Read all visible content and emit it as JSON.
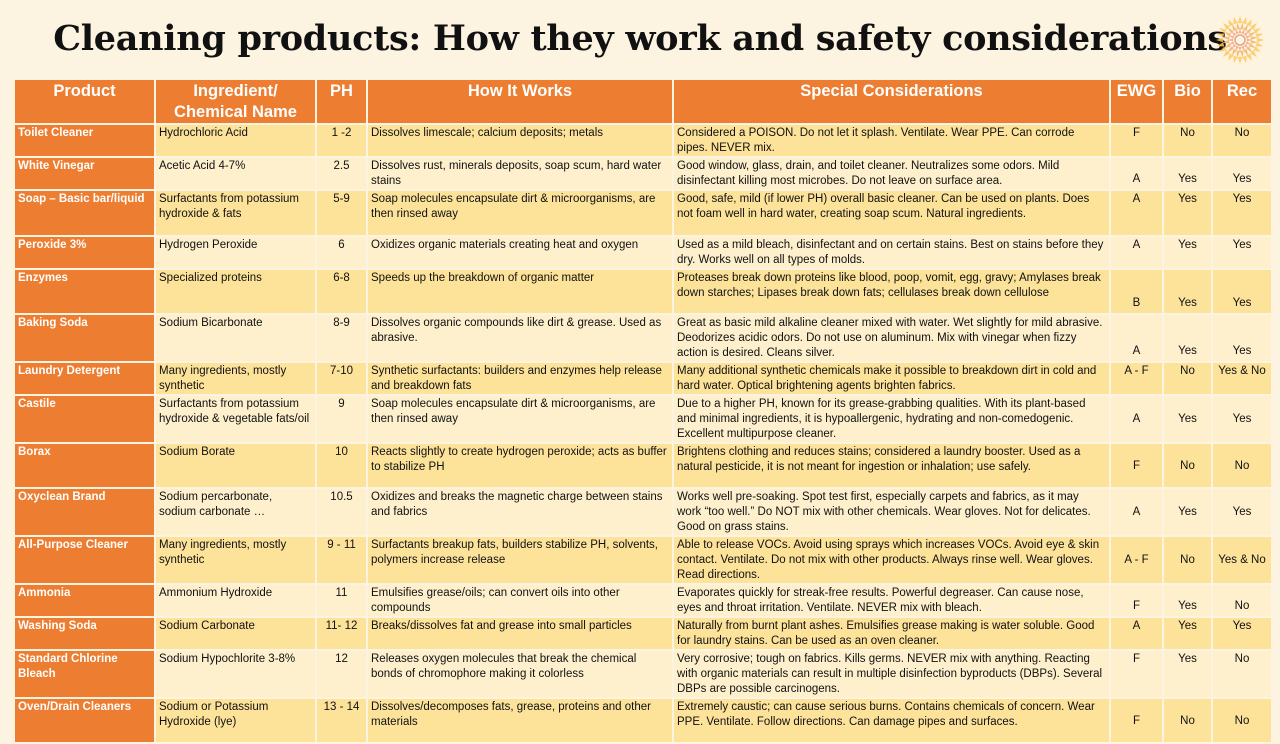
{
  "title": "Cleaning products: How they work and safety considerations",
  "logo": "orange-sunburst-mandala",
  "colors": {
    "header": "#ed7d31",
    "row_dark": "#fde29a",
    "row_light": "#fef0cc",
    "background": "#fdf3e1"
  },
  "columns": [
    "Product",
    "Ingredient/ Chemical Name",
    "PH",
    "How It Works",
    "Special Considerations",
    "EWG",
    "Bio",
    "Rec"
  ],
  "rows": [
    {
      "product": "Toilet Cleaner",
      "ingredient": "Hydrochloric Acid",
      "ph": "1 -2",
      "how": "Dissolves limescale; calcium deposits; metals",
      "considerations": "Considered a POISON. Do not let it splash. Ventilate. Wear PPE. Can corrode pipes. NEVER mix.",
      "ewg": "F",
      "bio": "No",
      "rec": "No"
    },
    {
      "product": "White Vinegar",
      "ingredient": "Acetic Acid 4-7%",
      "ph": "2.5",
      "how": "Dissolves rust, minerals deposits, soap scum, hard water stains",
      "considerations": "Good window, glass, drain, and toilet cleaner. Neutralizes some odors. Mild disinfectant killing most microbes. Do not leave on surface area.",
      "ewg": "A",
      "bio": "Yes",
      "rec": "Yes"
    },
    {
      "product": "Soap – Basic bar/liquid",
      "ingredient": "Surfactants from potassium hydroxide & fats",
      "ph": "5-9",
      "how": "Soap molecules encapsulate dirt & microorganisms, are then rinsed away",
      "considerations": "Good, safe, mild (if lower PH) overall basic cleaner. Can be used on plants. Does not foam well in hard water, creating soap scum. Natural ingredients.",
      "ewg": "A",
      "bio": "Yes",
      "rec": "Yes"
    },
    {
      "product": "Peroxide 3%",
      "ingredient": "Hydrogen Peroxide",
      "ph": "6",
      "how": "Oxidizes organic materials creating heat and oxygen",
      "considerations": "Used as a mild bleach, disinfectant and on certain stains. Best on stains before they dry. Works well on all types of molds.",
      "ewg": "A",
      "bio": "Yes",
      "rec": "Yes"
    },
    {
      "product": "Enzymes",
      "ingredient": "Specialized proteins",
      "ph": "6-8",
      "how": "Speeds up the breakdown of organic matter",
      "considerations": "Proteases break down proteins like blood, poop, vomit, egg, gravy; Amylases break down starches; Lipases break down fats; cellulases break down cellulose",
      "ewg": "B",
      "bio": "Yes",
      "rec": "Yes"
    },
    {
      "product": "Baking Soda",
      "ingredient": "Sodium Bicarbonate",
      "ph": "8-9",
      "how": "Dissolves organic compounds like dirt & grease.   Used as abrasive.",
      "considerations": "Great as basic mild alkaline cleaner mixed with water. Wet slightly for mild abrasive. Deodorizes acidic odors. Do not use on aluminum. Mix with vinegar when fizzy action is desired. Cleans silver.",
      "ewg": "A",
      "bio": "Yes",
      "rec": "Yes"
    },
    {
      "product": "Laundry Detergent",
      "ingredient": "Many ingredients, mostly synthetic",
      "ph": "7-10",
      "how": "Synthetic surfactants: builders and enzymes help release and breakdown fats",
      "considerations": "Many additional synthetic chemicals make it possible to breakdown dirt in cold and hard water. Optical brightening agents brighten fabrics.",
      "ewg": "A - F",
      "bio": "No",
      "rec": "Yes & No"
    },
    {
      "product": "Castile",
      "ingredient": "Surfactants from potassium hydroxide & vegetable fats/oil",
      "ph": "9",
      "how": "Soap molecules encapsulate dirt & microorganisms, are then rinsed away",
      "considerations": "Due to a higher PH, known for its grease-grabbing qualities. With its plant-based and minimal ingredients, it is hypoallergenic, hydrating and non-comedogenic. Excellent multipurpose cleaner.",
      "ewg": "A",
      "bio": "Yes",
      "rec": "Yes"
    },
    {
      "product": "Borax",
      "ingredient": "Sodium Borate",
      "ph": "10",
      "how": "Reacts slightly to create hydrogen peroxide; acts as buffer to stabilize PH",
      "considerations": "Brightens clothing and reduces stains; considered a laundry booster. Used as a natural pesticide, it is not meant for ingestion or inhalation; use safely.",
      "ewg": "F",
      "bio": "No",
      "rec": "No"
    },
    {
      "product": "Oxyclean Brand",
      "ingredient": "Sodium percarbonate, sodium carbonate …",
      "ph": "10.5",
      "how": "Oxidizes and breaks the magnetic charge between stains and fabrics",
      "considerations": "Works well pre-soaking. Spot test first, especially carpets and fabrics, as it may work “too well.” Do NOT mix with other chemicals. Wear gloves. Not for delicates. Good on grass stains.",
      "ewg": "A",
      "bio": "Yes",
      "rec": "Yes"
    },
    {
      "product": "All-Purpose Cleaner",
      "ingredient": "Many ingredients, mostly synthetic",
      "ph": "9 - 11",
      "how": "Surfactants breakup fats, builders stabilize PH, solvents, polymers increase release",
      "considerations": "Able to release VOCs. Avoid using sprays which increases VOCs. Avoid eye & skin contact. Ventilate. Do not mix with other products. Always rinse well. Wear gloves. Read directions.",
      "ewg": "A - F",
      "bio": "No",
      "rec": "Yes & No"
    },
    {
      "product": "Ammonia",
      "ingredient": "Ammonium Hydroxide",
      "ph": "11",
      "how": "Emulsifies grease/oils; can convert oils into other compounds",
      "considerations": "Evaporates quickly for streak-free results. Powerful degreaser. Can cause nose, eyes and throat irritation. Ventilate. NEVER mix with bleach.",
      "ewg": "F",
      "bio": "Yes",
      "rec": "No"
    },
    {
      "product": "Washing Soda",
      "ingredient": "Sodium Carbonate",
      "ph": "11- 12",
      "how": "Breaks/dissolves fat and grease into small particles",
      "considerations": "Naturally from burnt plant ashes. Emulsifies grease making is water soluble. Good for laundry stains. Can be used as an oven cleaner.",
      "ewg": "A",
      "bio": "Yes",
      "rec": "Yes"
    },
    {
      "product": "Standard Chlorine Bleach",
      "ingredient": "Sodium Hypochlorite 3-8%",
      "ph": "12",
      "how": "Releases oxygen molecules that break the chemical bonds of chromophore making it colorless",
      "considerations": "Very corrosive; tough on fabrics.  Kills germs. NEVER mix with anything. Reacting with organic materials can result in multiple disinfection byproducts (DBPs). Several DBPs are possible carcinogens.",
      "ewg": "F",
      "bio": "Yes",
      "rec": "No"
    },
    {
      "product": "Oven/Drain Cleaners",
      "ingredient": "Sodium or Potassium Hydroxide (lye)",
      "ph": "13 - 14",
      "how": "Dissolves/decomposes fats, grease, proteins and other materials",
      "considerations": " Extremely caustic; can cause serious burns. Contains chemicals of concern. Wear PPE. Ventilate. Follow directions. Can damage pipes and surfaces.",
      "ewg": "F",
      "bio": "No",
      "rec": "No"
    }
  ]
}
